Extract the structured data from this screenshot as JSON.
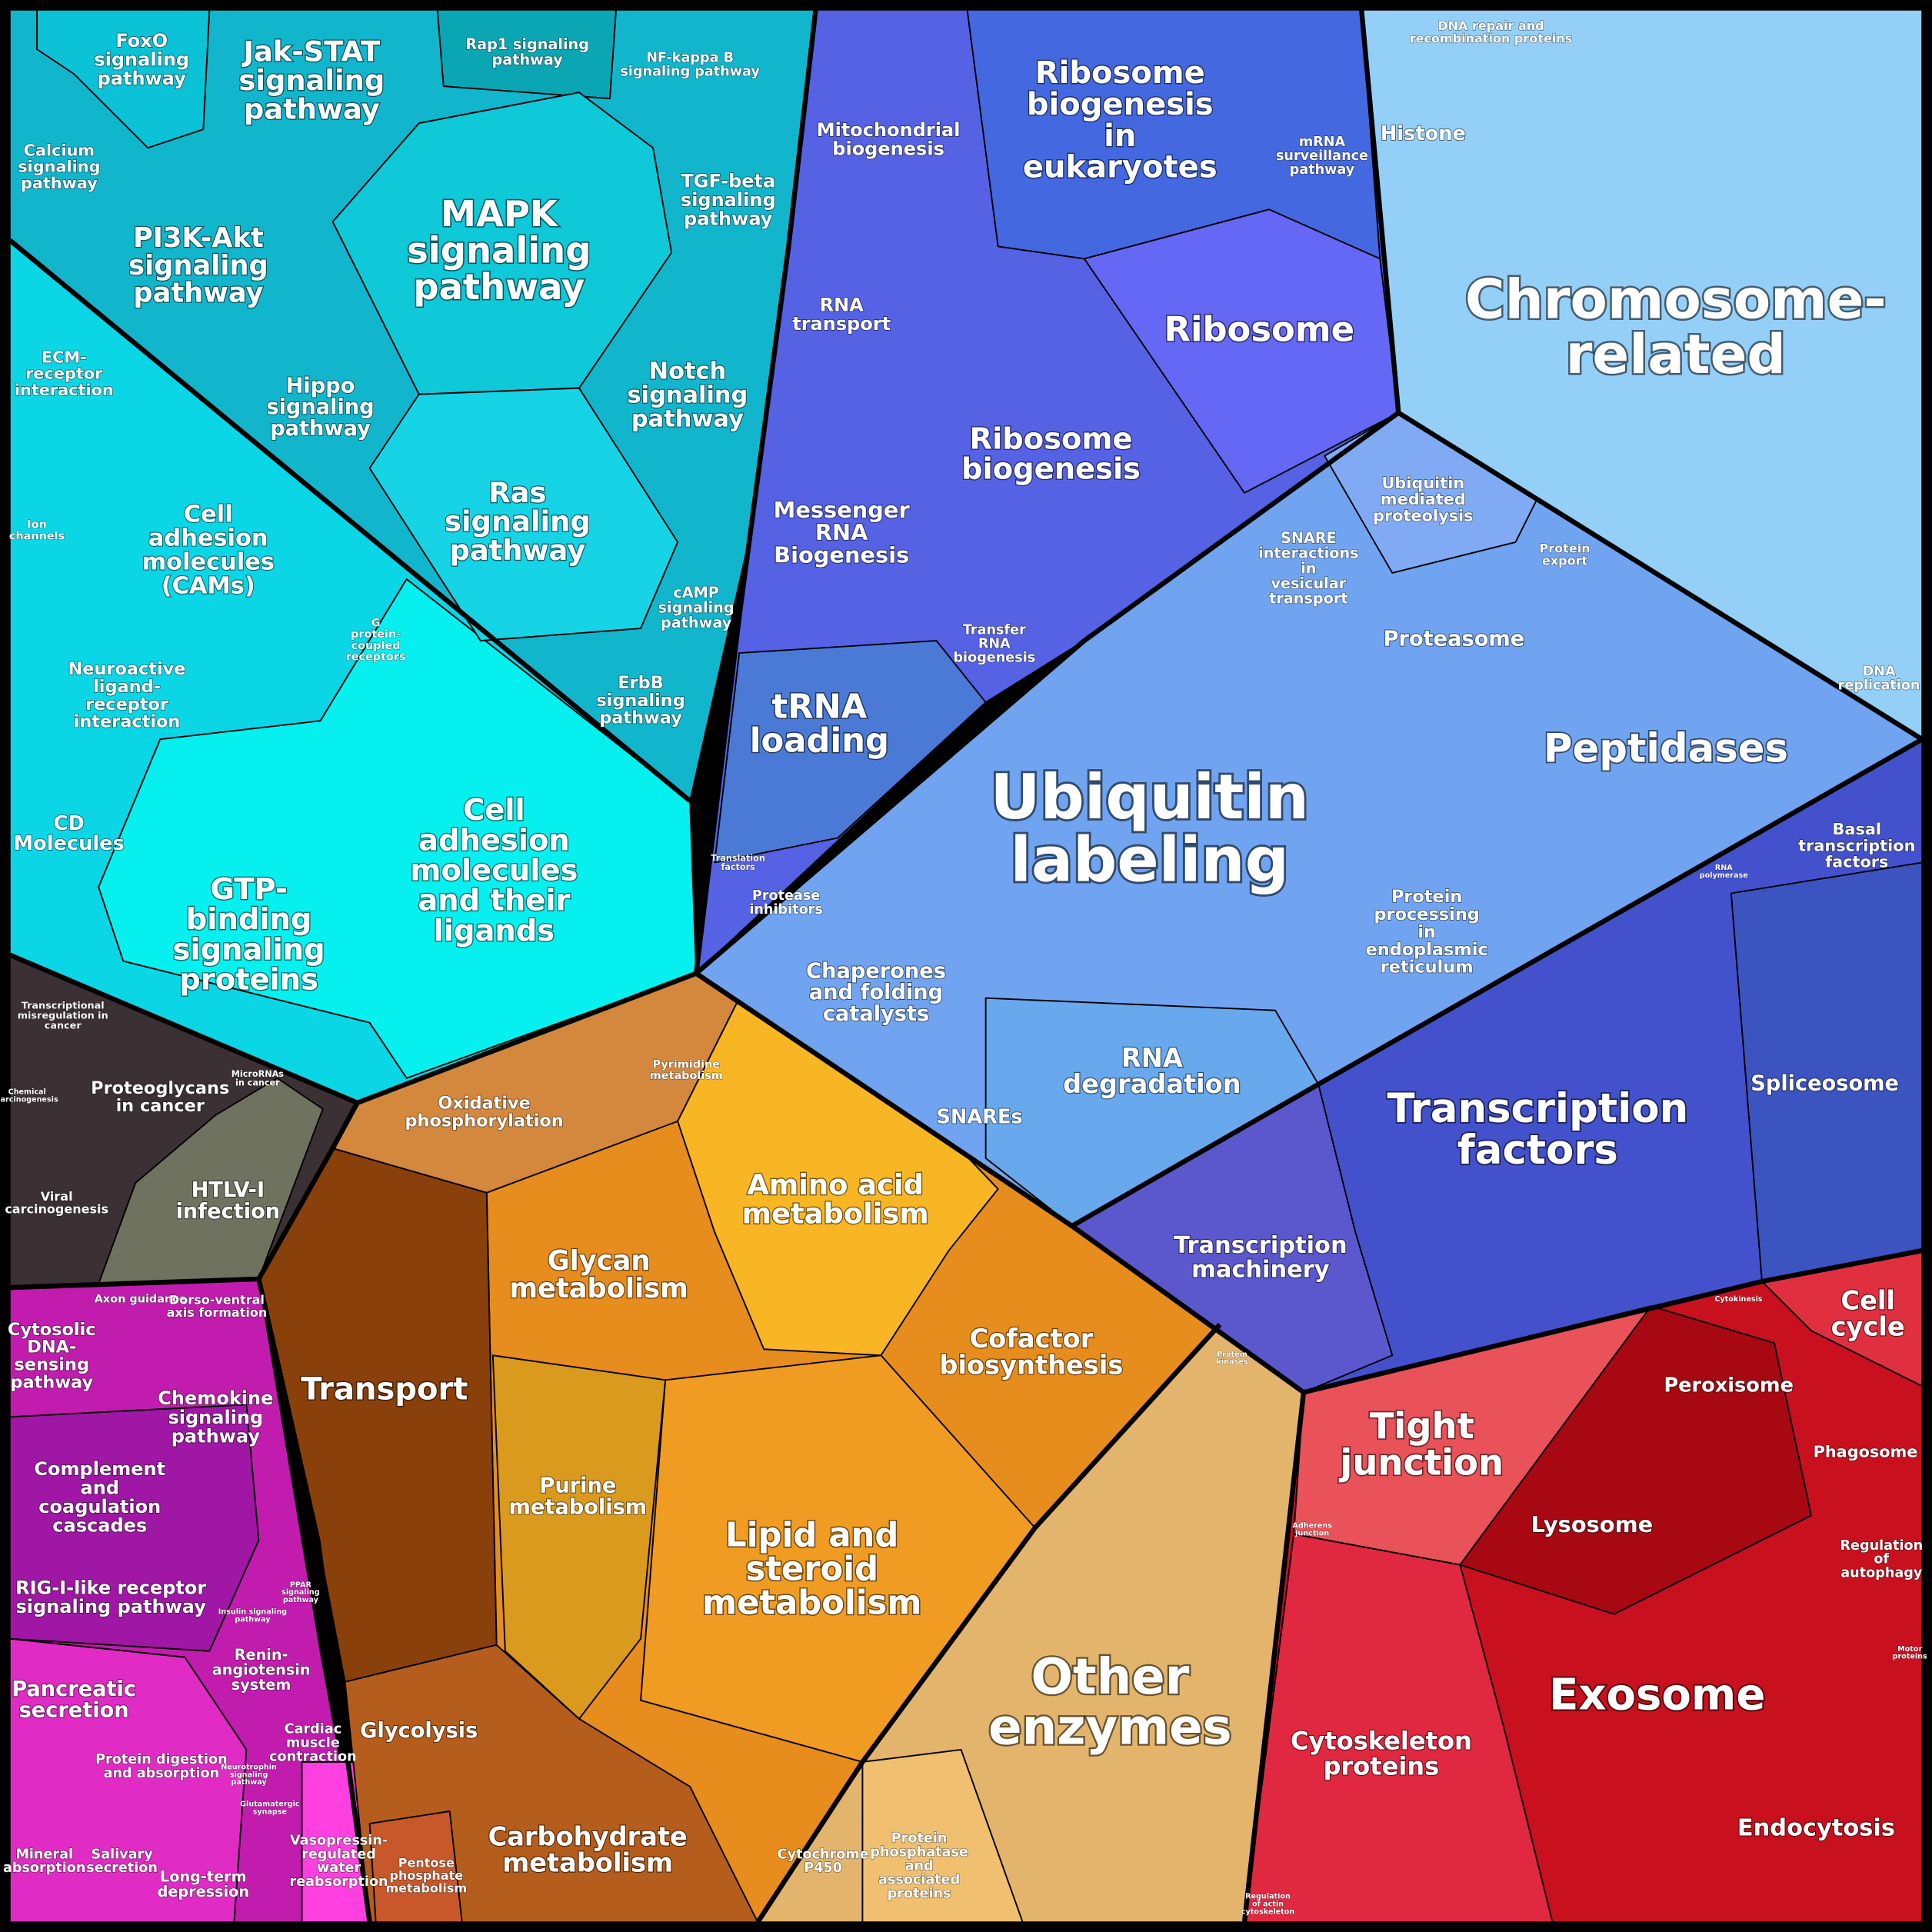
{
  "labels": [
    "FoxO signaling pathway",
    "Jak-STAT signaling pathway",
    "Rap1 signaling pathway",
    "NF-kappa B signaling pathway",
    "Calcium signaling pathway",
    "PI3K-Akt signaling pathway",
    "MAPK signaling pathway",
    "TGF-beta signaling pathway",
    "ECM-receptor interaction",
    "Hippo signaling pathway",
    "Notch signaling pathway",
    "Ras signaling pathway",
    "Ion channels",
    "Cell adhesion molecules (CAMs)",
    "G protein-coupled receptors",
    "cAMP signaling pathway",
    "ErbB signaling pathway",
    "Neuroactive ligand-receptor interaction",
    "CD Molecules",
    "GTP-binding signaling proteins",
    "Cell adhesion molecules and their ligands",
    "Mitochondrial biogenesis",
    "Ribosome biogenesis in eukaryotes",
    "mRNA surveillance pathway",
    "Histone",
    "DNA repair and recombination proteins",
    "Chromosome-related",
    "RNA transport",
    "Ribosome",
    "Ribosome biogenesis",
    "Messenger RNA Biogenesis",
    "Ubiquitin mediated proteolysis",
    "SNARE interactions in vesicular transport",
    "Protein export",
    "Transfer RNA biogenesis",
    "Proteasome",
    "tRNA loading",
    "Peptidases",
    "DNA replication",
    "Ubiquitin labeling",
    "Basal transcription factors",
    "Protease inhibitors",
    "Translation factors",
    "Protein processing in endoplasmic reticulum",
    "Chaperones and folding catalysts",
    "RNA degradation",
    "SNAREs",
    "Spliceosome",
    "Transcription factors",
    "Transcription machinery",
    "RNA polymerase",
    "Transcriptional misregulation in cancer",
    "Proteoglycans in cancer",
    "MicroRNAs in cancer",
    "Chemical carcinogenesis",
    "Viral carcinogenesis",
    "HTLV-I infection",
    "Oxidative phosphorylation",
    "Pyrimidine metabolism",
    "Amino acid metabolism",
    "Glycan metabolism",
    "Transport",
    "Cofactor biosynthesis",
    "Purine metabolism",
    "Lipid and steroid metabolism",
    "Glycolysis",
    "Carbohydrate metabolism",
    "Pentose phosphate metabolism",
    "Other enzymes",
    "Cytochrome P450",
    "Protein phosphatase and associated proteins",
    "Protein kinases",
    "Axon guidance",
    "Dorso-ventral axis formation",
    "Cytosolic DNA-sensing pathway",
    "Chemokine signaling pathway",
    "Complement and coagulation cascades",
    "RIG-I-like receptor signaling pathway",
    "PPAR signaling pathway",
    "Insulin signaling pathway",
    "Pancreatic secretion",
    "Renin-angiotensin system",
    "Protein digestion and absorption",
    "Cardiac muscle contraction",
    "Neurotrophin signaling pathway",
    "Glutamatergic synapse",
    "Mineral absorption",
    "Salivary secretion",
    "Long-term depression",
    "Vasopressin-regulated water reabsorption",
    "Cell cycle",
    "Cytokinesis",
    "Peroxisome",
    "Tight junction",
    "Phagosome",
    "Lysosome",
    "Regulation of autophagy",
    "Adherens junction",
    "Exosome",
    "Motor proteins",
    "Cytoskeleton proteins",
    "Endocytosis",
    "Regulation of actin cytoskeleton"
  ]
}
